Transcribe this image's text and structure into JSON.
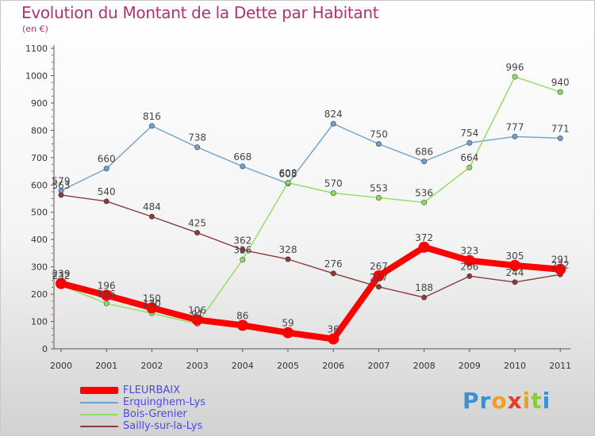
{
  "chart_data": {
    "type": "line",
    "title": "Evolution du Montant de la Dette par Habitant",
    "subtitle": "(en €)",
    "categories": [
      "2000",
      "2001",
      "2002",
      "2003",
      "2004",
      "2005",
      "2006",
      "2007",
      "2008",
      "2009",
      "2010",
      "2011"
    ],
    "ylim": [
      0,
      1100
    ],
    "yticks": [
      0,
      100,
      200,
      300,
      400,
      500,
      600,
      700,
      800,
      900,
      1000,
      1100
    ],
    "grid": false,
    "legend_position": "bottom-left",
    "series": [
      {
        "name": "FLEURBAIX",
        "color": "#ff0000",
        "values": [
          239,
          196,
          150,
          106,
          86,
          59,
          36,
          267,
          372,
          323,
          305,
          291
        ]
      },
      {
        "name": "Erquinghem-Lys",
        "color": "#6fa0cf",
        "values": [
          579,
          660,
          816,
          738,
          668,
          605,
          824,
          750,
          686,
          754,
          777,
          771
        ]
      },
      {
        "name": "Bois-Grenier",
        "color": "#90dc60",
        "values": [
          232,
          166,
          130,
          91,
          326,
          608,
          570,
          553,
          536,
          664,
          996,
          940
        ]
      },
      {
        "name": "Sailly-sur-la-Lys",
        "color": "#8b3a3a",
        "values": [
          563,
          540,
          484,
          425,
          362,
          328,
          276,
          227,
          188,
          266,
          244,
          272
        ]
      }
    ]
  },
  "branding": {
    "letters": [
      "P",
      "r",
      "o",
      "x",
      "i",
      "t",
      "i"
    ],
    "colors": [
      "#3a8fd6",
      "#3a8fd6",
      "#f0a020",
      "#e63c2a",
      "#f0a020",
      "#8ccc3c",
      "#3a8fd6"
    ]
  }
}
